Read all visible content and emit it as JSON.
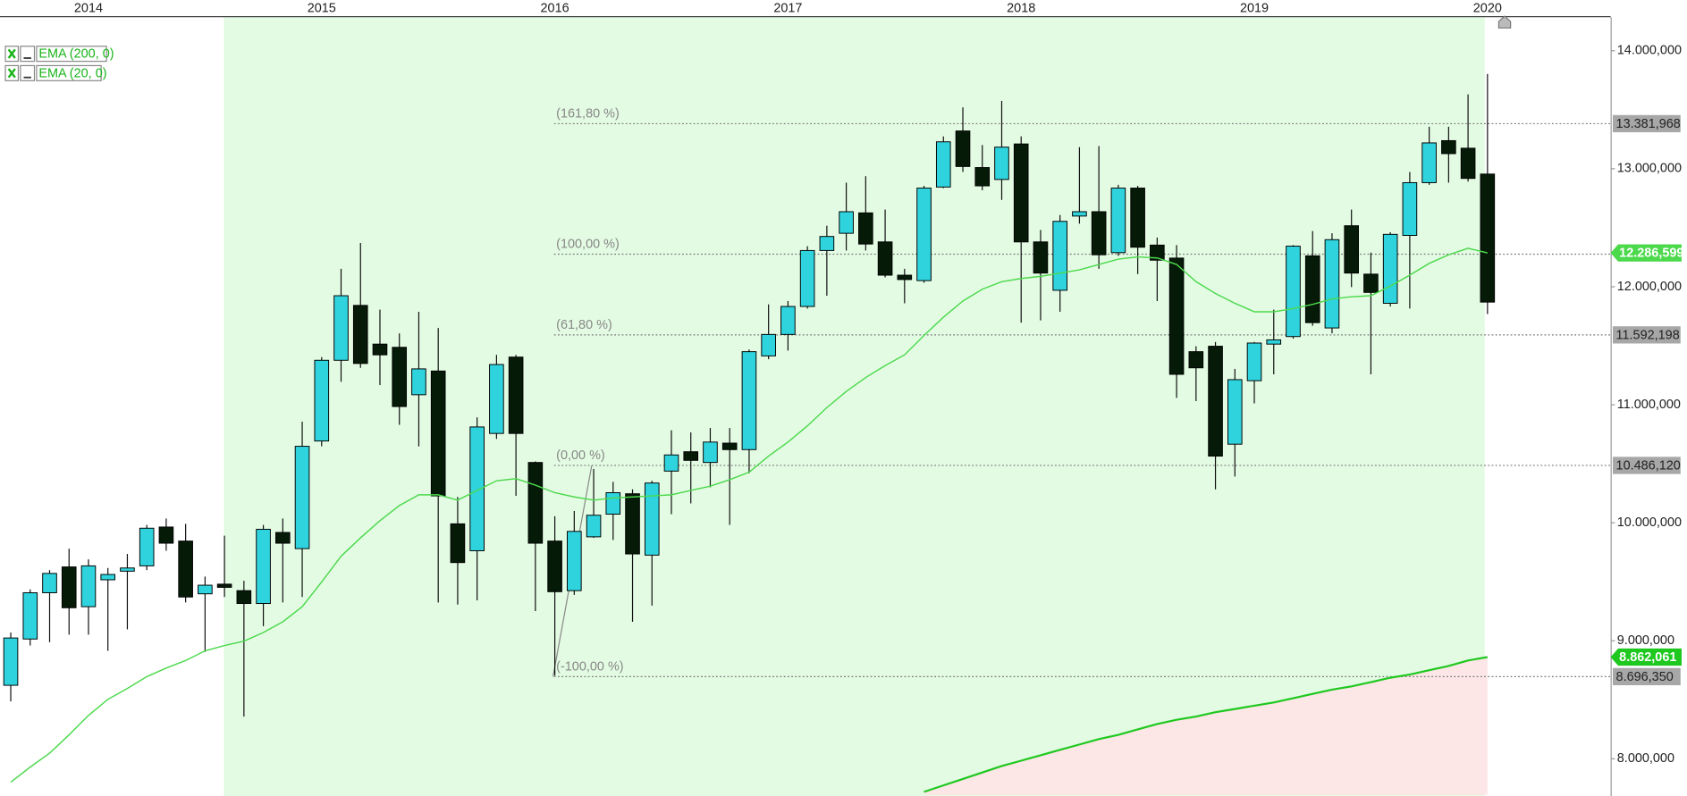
{
  "chart_data": {
    "type": "candlestick",
    "categories": [
      null,
      null,
      null,
      null,
      "2014",
      null,
      null,
      null,
      null,
      null,
      null,
      null,
      null,
      null,
      null,
      null,
      "2015",
      null,
      null,
      null,
      null,
      null,
      null,
      null,
      null,
      null,
      null,
      null,
      "2016",
      null,
      null,
      null,
      null,
      null,
      null,
      null,
      null,
      null,
      null,
      null,
      "2017",
      null,
      null,
      null,
      null,
      null,
      null,
      null,
      null,
      null,
      null,
      null,
      "2018",
      null,
      null,
      null,
      null,
      null,
      null,
      null,
      null,
      null,
      null,
      null,
      "2019",
      null,
      null,
      null,
      null,
      null,
      null,
      null,
      null,
      null,
      null,
      null,
      "2020"
    ],
    "ohlc": [
      [
        8623,
        9070,
        8486,
        9024
      ],
      [
        9015,
        9435,
        8960,
        9407
      ],
      [
        9407,
        9599,
        8988,
        9571
      ],
      [
        9626,
        9781,
        9052,
        9280
      ],
      [
        9289,
        9690,
        9052,
        9635
      ],
      [
        9517,
        9617,
        8915,
        9562
      ],
      [
        9590,
        9736,
        9097,
        9617
      ],
      [
        9635,
        9982,
        9599,
        9954
      ],
      [
        9964,
        10036,
        9763,
        9827
      ],
      [
        9845,
        9991,
        9325,
        9371
      ],
      [
        9398,
        9544,
        8906,
        9471
      ],
      [
        9480,
        9891,
        9371,
        9453
      ],
      [
        9425,
        9508,
        8358,
        9316
      ],
      [
        9316,
        9982,
        9124,
        9945
      ],
      [
        9918,
        10036,
        9325,
        9827
      ],
      [
        9781,
        10857,
        9371,
        10648
      ],
      [
        10693,
        11404,
        10648,
        11377
      ],
      [
        11377,
        12152,
        11195,
        11924
      ],
      [
        11842,
        12371,
        11313,
        11350
      ],
      [
        11514,
        11806,
        11167,
        11423
      ],
      [
        11487,
        11605,
        10830,
        10985
      ],
      [
        11085,
        11788,
        10648,
        11304
      ],
      [
        11286,
        11651,
        9325,
        10228
      ],
      [
        9991,
        10219,
        9307,
        9663
      ],
      [
        9763,
        10894,
        9343,
        10812
      ],
      [
        10757,
        11423,
        10711,
        11341
      ],
      [
        11404,
        11423,
        10228,
        10757
      ],
      [
        10511,
        10520,
        9252,
        9827
      ],
      [
        9845,
        10055,
        8705,
        9416
      ],
      [
        9425,
        10100,
        9389,
        9927
      ],
      [
        9881,
        10456,
        9872,
        10064
      ],
      [
        10073,
        10347,
        9854,
        10255
      ],
      [
        10246,
        10283,
        9161,
        9736
      ],
      [
        9726,
        10356,
        9298,
        10337
      ],
      [
        10438,
        10784,
        10073,
        10575
      ],
      [
        10602,
        10766,
        10164,
        10529
      ],
      [
        10511,
        10803,
        10301,
        10684
      ],
      [
        10675,
        10803,
        9982,
        10620
      ],
      [
        10620,
        11468,
        10420,
        11450
      ],
      [
        11414,
        11851,
        11386,
        11596
      ],
      [
        11596,
        11879,
        11459,
        11833
      ],
      [
        11833,
        12344,
        11815,
        12307
      ],
      [
        12307,
        12517,
        11924,
        12426
      ],
      [
        12453,
        12882,
        12307,
        12636
      ],
      [
        12626,
        12937,
        12307,
        12362
      ],
      [
        12380,
        12654,
        12079,
        12098
      ],
      [
        12098,
        12152,
        11860,
        12061
      ],
      [
        12052,
        12855,
        12034,
        12836
      ],
      [
        12845,
        13274,
        12836,
        13228
      ],
      [
        13320,
        13520,
        12973,
        13019
      ],
      [
        13010,
        13201,
        12818,
        12855
      ],
      [
        12909,
        13575,
        12736,
        13183
      ],
      [
        13210,
        13274,
        11696,
        12380
      ],
      [
        12380,
        12481,
        11715,
        12116
      ],
      [
        11970,
        12608,
        11788,
        12554
      ],
      [
        12599,
        13183,
        12535,
        12636
      ],
      [
        12636,
        13192,
        12152,
        12271
      ],
      [
        12289,
        12864,
        12262,
        12836
      ],
      [
        12836,
        12855,
        12107,
        12335
      ],
      [
        12353,
        12417,
        11879,
        12225
      ],
      [
        12243,
        12353,
        11058,
        11258
      ],
      [
        11450,
        11496,
        11031,
        11313
      ],
      [
        11496,
        11532,
        10283,
        10565
      ],
      [
        10666,
        11304,
        10392,
        11213
      ],
      [
        11204,
        11532,
        11012,
        11523
      ],
      [
        11514,
        11806,
        11258,
        11550
      ],
      [
        11578,
        12353,
        11560,
        12344
      ],
      [
        12262,
        12472,
        11669,
        11696
      ],
      [
        11651,
        12453,
        11605,
        12399
      ],
      [
        12517,
        12654,
        11997,
        12116
      ],
      [
        12107,
        12289,
        11258,
        11952
      ],
      [
        11860,
        12462,
        11833,
        12444
      ],
      [
        12435,
        12973,
        11815,
        12882
      ],
      [
        12882,
        13356,
        12864,
        13219
      ],
      [
        13238,
        13356,
        12882,
        13128
      ],
      [
        13174,
        13630,
        12891,
        12918
      ],
      [
        12955,
        13803,
        11769,
        11870
      ]
    ],
    "up_color": "#2fd3de",
    "down_color": "#061a08",
    "series": [
      {
        "name": "EMA (200, 0)",
        "color": "#1ec81e",
        "values": [
          null,
          null,
          null,
          null,
          null,
          null,
          null,
          null,
          null,
          null,
          null,
          null,
          null,
          null,
          null,
          null,
          null,
          null,
          null,
          null,
          null,
          null,
          null,
          null,
          null,
          null,
          null,
          null,
          null,
          null,
          null,
          null,
          null,
          null,
          null,
          null,
          null,
          null,
          null,
          null,
          null,
          null,
          null,
          null,
          null,
          null,
          null,
          7720,
          7775,
          7829,
          7884,
          7939,
          7984,
          8030,
          8076,
          8121,
          8167,
          8203,
          8249,
          8295,
          8331,
          8358,
          8395,
          8422,
          8450,
          8477,
          8513,
          8550,
          8586,
          8614,
          8650,
          8687,
          8714,
          8751,
          8787,
          8833,
          8862.061
        ],
        "value_labels": [
          null,
          null,
          null,
          null,
          null,
          null,
          null,
          null,
          null,
          null,
          null,
          null,
          null,
          null,
          null,
          null,
          null,
          null,
          null,
          null,
          null,
          null,
          null,
          null,
          null,
          null,
          null,
          null,
          null,
          null,
          null,
          null,
          null,
          null,
          null,
          null,
          null,
          null,
          null,
          null,
          null,
          null,
          null,
          null,
          null,
          null,
          null,
          null,
          null,
          null,
          null,
          null,
          null,
          null,
          null,
          null,
          null,
          null,
          null,
          null,
          null,
          null,
          null,
          null,
          null,
          null,
          null,
          null,
          null,
          null,
          null,
          null,
          null,
          null,
          null,
          null,
          "8.862,061"
        ]
      },
      {
        "name": "EMA (20, 0)",
        "color": "#4cd94c",
        "values": [
          7802,
          7930,
          8048,
          8203,
          8368,
          8504,
          8596,
          8696,
          8769,
          8833,
          8915,
          8960,
          8997,
          9070,
          9161,
          9289,
          9498,
          9717,
          9872,
          10018,
          10146,
          10237,
          10237,
          10192,
          10274,
          10356,
          10374,
          10319,
          10255,
          10219,
          10192,
          10210,
          10219,
          10228,
          10237,
          10274,
          10310,
          10365,
          10429,
          10565,
          10684,
          10821,
          10976,
          11113,
          11231,
          11332,
          11423,
          11587,
          11742,
          11879,
          11979,
          12043,
          12070,
          12088,
          12116,
          12143,
          12189,
          12234,
          12253,
          12244,
          12189,
          12043,
          11943,
          11860,
          11788,
          11788,
          11815,
          11851,
          11897,
          11915,
          11924,
          12006,
          12098,
          12198,
          12271,
          12326,
          12286.599
        ],
        "value_labels": [
          null,
          null,
          null,
          null,
          null,
          null,
          null,
          null,
          null,
          null,
          null,
          null,
          null,
          null,
          null,
          null,
          null,
          null,
          null,
          null,
          null,
          null,
          null,
          null,
          null,
          null,
          null,
          null,
          null,
          null,
          null,
          null,
          null,
          null,
          null,
          null,
          null,
          null,
          null,
          null,
          null,
          null,
          null,
          null,
          null,
          null,
          null,
          null,
          null,
          null,
          null,
          null,
          null,
          null,
          null,
          null,
          null,
          null,
          null,
          null,
          null,
          null,
          null,
          null,
          null,
          null,
          null,
          null,
          null,
          null,
          null,
          null,
          null,
          null,
          null,
          null,
          "12.286,599"
        ]
      }
    ],
    "fib_levels": [
      {
        "label": "(161,80 %)",
        "value": 13381.968,
        "value_label": "13.381,968"
      },
      {
        "label": "(100,00 %)",
        "value": 12275.89
      },
      {
        "label": "(61,80 %)",
        "value": 11592.198,
        "value_label": "11.592,198"
      },
      {
        "label": "(0,00 %)",
        "value": 10486.12,
        "value_label": "10.486,120"
      },
      {
        "label": "(-100,00 %)",
        "value": 8696.35,
        "value_label": "8.696,350"
      }
    ],
    "ylim": [
      7694,
      14284
    ],
    "yticks": [
      {
        "value": 8000,
        "label": "8.000,000"
      },
      {
        "value": 9000,
        "label": "9.000,000"
      },
      {
        "value": 10000,
        "label": "10.000,000"
      },
      {
        "value": 11000,
        "label": "11.000,000"
      },
      {
        "value": 12000,
        "label": "12.000,000"
      },
      {
        "value": 13000,
        "label": "13.000,000"
      },
      {
        "value": 14000,
        "label": "14.000,000"
      }
    ],
    "legend": "top-left"
  }
}
